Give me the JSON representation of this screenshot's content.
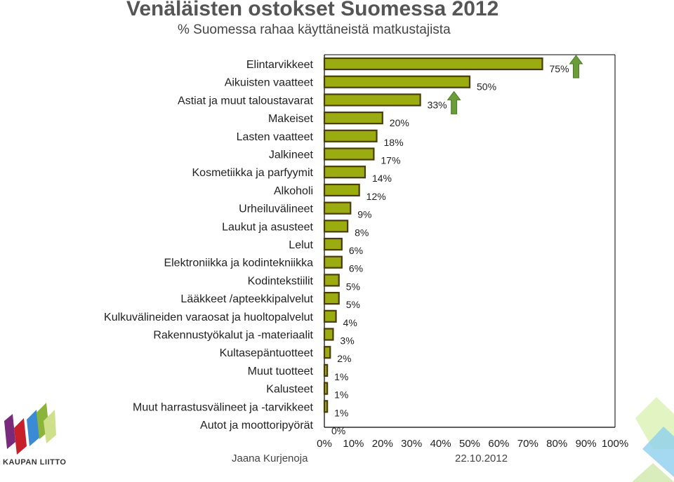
{
  "header": {
    "title": "Venäläisten ostokset Suomessa 2012",
    "subtitle": "% Suomessa rahaa käyttäneistä matkustajista"
  },
  "footer": {
    "author": "Jaana Kurjenoja",
    "date": "22.10.2012",
    "logo_text": "KAUPAN LIITTO"
  },
  "colors": {
    "bar_fill": "#9aac10",
    "bar_stroke": "#4a3c0c",
    "arrow": "#6a9c3a",
    "axis": "#000000"
  },
  "chart_data": {
    "type": "bar",
    "orientation": "horizontal",
    "title": "Venäläisten ostokset Suomessa 2012",
    "subtitle": "% Suomessa rahaa käyttäneistä matkustajista",
    "xlim": [
      0,
      100
    ],
    "xticks": [
      "0%",
      "10%",
      "20%",
      "30%",
      "40%",
      "50%",
      "60%",
      "70%",
      "80%",
      "90%",
      "100%"
    ],
    "categories": [
      "Elintarvikkeet",
      "Aikuisten vaatteet",
      "Astiat ja muut taloustavarat",
      "Makeiset",
      "Lasten vaatteet",
      "Jalkineet",
      "Kosmetiikka ja parfyymit",
      "Alkoholi",
      "Urheiluvälineet",
      "Laukut ja asusteet",
      "Lelut",
      "Elektroniikka ja kodintekniikka",
      "Kodintekstiilit",
      "Lääkkeet /apteekkipalvelut",
      "Kulkuvälineiden varaosat ja huoltopalvelut",
      "Rakennustyökalut ja -materiaalit",
      "Kultasepäntuotteet",
      "Muut tuotteet",
      "Kalusteet",
      "Muut harrastusvälineet ja -tarvikkeet",
      "Autot ja moottoripyörät"
    ],
    "values": [
      75,
      50,
      33,
      20,
      18,
      17,
      14,
      12,
      9,
      8,
      6,
      6,
      5,
      5,
      4,
      3,
      2,
      1,
      1,
      1,
      0
    ],
    "labels": [
      "75%",
      "50%",
      "33%",
      "20%",
      "18%",
      "17%",
      "14%",
      "12%",
      "9%",
      "8%",
      "6%",
      "6%",
      "5%",
      "5%",
      "4%",
      "3%",
      "2%",
      "1%",
      "1%",
      "1%",
      "0%"
    ],
    "increase_arrows": [
      "Elintarvikkeet",
      "Astiat ja muut taloustavarat"
    ],
    "grid": false
  }
}
